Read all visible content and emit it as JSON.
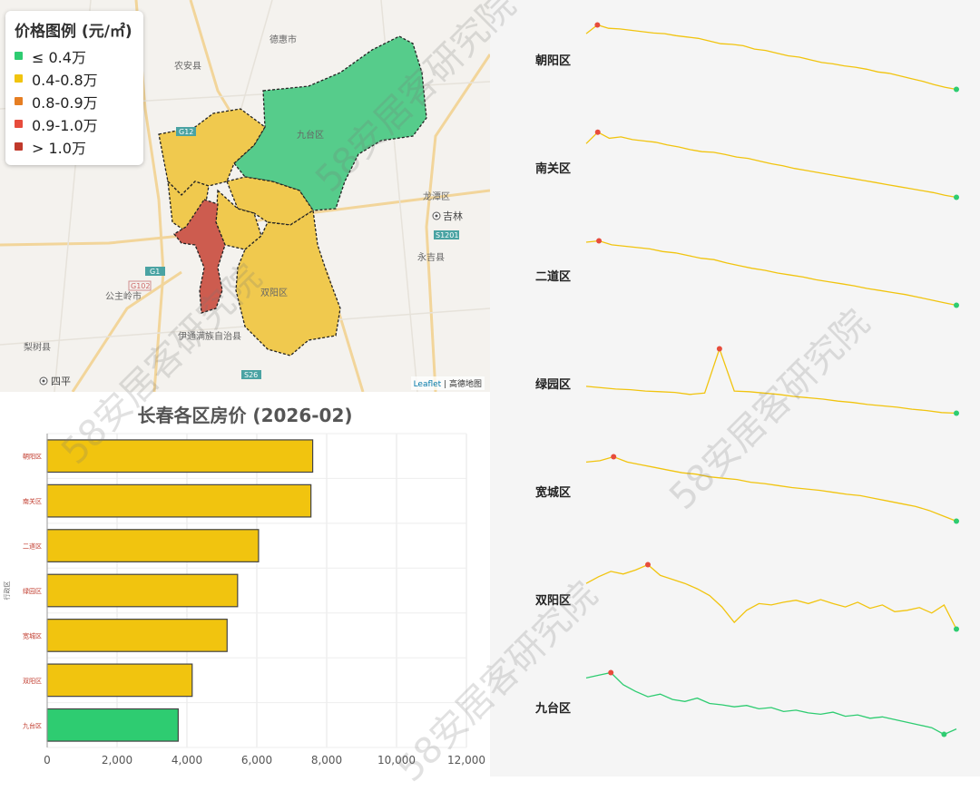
{
  "map": {
    "legend_title": "价格图例 (元/㎡)",
    "legend": [
      {
        "label": "≤ 0.4万",
        "color": "#2ecc71"
      },
      {
        "label": "0.4-0.8万",
        "color": "#f1c40f"
      },
      {
        "label": "0.8-0.9万",
        "color": "#e67e22"
      },
      {
        "label": "0.9-1.0万",
        "color": "#e74c3c"
      },
      {
        "label": "> 1.0万",
        "color": "#c0392b"
      }
    ],
    "place_labels": [
      "德惠市",
      "农安县",
      "九台区",
      "龙潭区",
      "吉林",
      "永吉县",
      "公主岭市",
      "双阳区",
      "伊通满族自治县",
      "梨树县",
      "四平"
    ],
    "road_labels": [
      "G12",
      "G1",
      "G102",
      "S26",
      "S1201"
    ],
    "attribution_link": "Leaflet",
    "attribution_text": "| 高德地图"
  },
  "watermark": "58安居客研究院",
  "chart_data": [
    {
      "type": "bar",
      "orientation": "horizontal",
      "title": "长春各区房价 (2026-02)",
      "ylabel": "行政区",
      "xlabel": "",
      "categories": [
        "朝阳区",
        "南关区",
        "二道区",
        "绿园区",
        "宽城区",
        "双阳区",
        "九台区"
      ],
      "values": [
        7600,
        7550,
        6050,
        5450,
        5150,
        4150,
        3750
      ],
      "colors": [
        "#f1c40f",
        "#f1c40f",
        "#f1c40f",
        "#f1c40f",
        "#f1c40f",
        "#f1c40f",
        "#2ecc71"
      ],
      "xlim": [
        0,
        12000
      ],
      "xticks": [
        "0",
        "2,000",
        "4,000",
        "6,000",
        "8,000",
        "10,000",
        "12,000"
      ],
      "grid": true
    },
    {
      "type": "line",
      "subtype": "sparklines",
      "series": [
        {
          "name": "朝阳区",
          "color": "#f1c40f",
          "values": [
            0.85,
            0.98,
            0.93,
            0.92,
            0.9,
            0.88,
            0.86,
            0.85,
            0.82,
            0.8,
            0.78,
            0.74,
            0.7,
            0.69,
            0.67,
            0.62,
            0.6,
            0.56,
            0.52,
            0.5,
            0.46,
            0.42,
            0.4,
            0.37,
            0.35,
            0.32,
            0.28,
            0.26,
            0.22,
            0.18,
            0.14,
            0.09,
            0.05,
            0.02
          ]
        },
        {
          "name": "南关区",
          "color": "#f1c40f",
          "values": [
            0.82,
            0.99,
            0.9,
            0.92,
            0.88,
            0.86,
            0.84,
            0.8,
            0.77,
            0.73,
            0.7,
            0.69,
            0.66,
            0.62,
            0.6,
            0.56,
            0.52,
            0.49,
            0.45,
            0.42,
            0.39,
            0.36,
            0.33,
            0.3,
            0.27,
            0.24,
            0.21,
            0.18,
            0.15,
            0.12,
            0.09,
            0.05,
            0.02
          ]
        },
        {
          "name": "二道区",
          "color": "#f1c40f",
          "values": [
            0.96,
            0.98,
            0.92,
            0.9,
            0.88,
            0.86,
            0.82,
            0.8,
            0.76,
            0.72,
            0.7,
            0.65,
            0.61,
            0.57,
            0.54,
            0.5,
            0.47,
            0.44,
            0.4,
            0.37,
            0.34,
            0.31,
            0.27,
            0.24,
            0.21,
            0.18,
            0.14,
            0.1,
            0.06,
            0.02
          ]
        },
        {
          "name": "绿园区",
          "color": "#f1c40f",
          "values": [
            0.42,
            0.4,
            0.38,
            0.37,
            0.35,
            0.34,
            0.33,
            0.3,
            0.32,
            0.98,
            0.35,
            0.34,
            0.32,
            0.3,
            0.27,
            0.25,
            0.23,
            0.2,
            0.18,
            0.15,
            0.13,
            0.11,
            0.08,
            0.06,
            0.03,
            0.02
          ]
        },
        {
          "name": "宽城区",
          "color": "#f1c40f",
          "values": [
            0.9,
            0.92,
            0.98,
            0.9,
            0.86,
            0.82,
            0.78,
            0.74,
            0.72,
            0.68,
            0.66,
            0.64,
            0.6,
            0.58,
            0.55,
            0.52,
            0.5,
            0.48,
            0.45,
            0.42,
            0.4,
            0.36,
            0.32,
            0.28,
            0.24,
            0.18,
            0.1,
            0.02
          ]
        },
        {
          "name": "双阳区",
          "color": "#f1c40f",
          "values": [
            0.7,
            0.8,
            0.88,
            0.84,
            0.9,
            0.98,
            0.82,
            0.76,
            0.7,
            0.62,
            0.52,
            0.35,
            0.12,
            0.3,
            0.4,
            0.38,
            0.42,
            0.45,
            0.4,
            0.46,
            0.4,
            0.35,
            0.42,
            0.33,
            0.38,
            0.28,
            0.3,
            0.34,
            0.26,
            0.38,
            0.02
          ]
        },
        {
          "name": "九台区",
          "color": "#2ecc71",
          "values": [
            0.9,
            0.94,
            0.98,
            0.8,
            0.7,
            0.62,
            0.66,
            0.58,
            0.55,
            0.6,
            0.52,
            0.5,
            0.47,
            0.49,
            0.44,
            0.46,
            0.4,
            0.42,
            0.38,
            0.36,
            0.39,
            0.33,
            0.35,
            0.3,
            0.32,
            0.28,
            0.24,
            0.2,
            0.16,
            0.06,
            0.14
          ]
        }
      ]
    }
  ]
}
